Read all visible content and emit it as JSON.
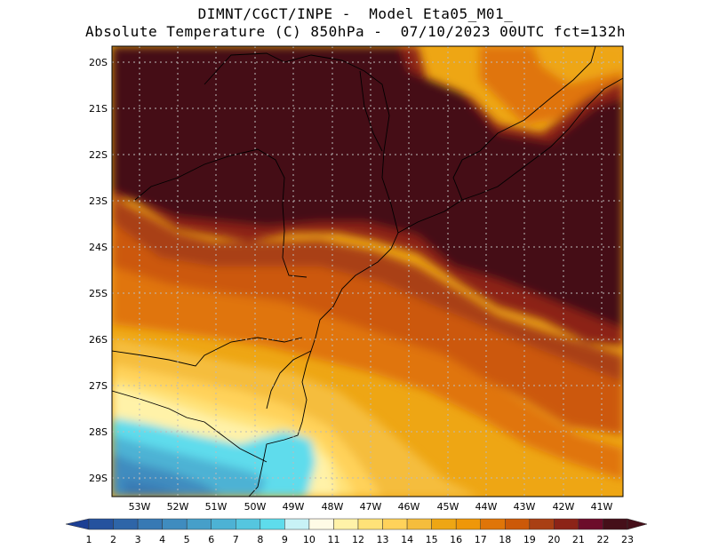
{
  "title_line1": "DIMNT/CGCT/INPE -  Model Eta05_M01_",
  "title_line2": "Absolute Temperature (C) 850hPa -  07/10/2023 00UTC fct=132h",
  "lat_labels": [
    "20S",
    "21S",
    "22S",
    "23S",
    "24S",
    "25S",
    "26S",
    "27S",
    "28S",
    "29S"
  ],
  "lon_labels": [
    "53W",
    "52W",
    "51W",
    "50W",
    "49W",
    "48W",
    "47W",
    "46W",
    "45W",
    "44W",
    "43W",
    "42W",
    "41W"
  ],
  "colorbar": {
    "labels": [
      "1",
      "2",
      "3",
      "4",
      "5",
      "6",
      "7",
      "8",
      "9",
      "10",
      "11",
      "12",
      "13",
      "14",
      "15",
      "16",
      "17",
      "18",
      "19",
      "20",
      "21",
      "22",
      "23"
    ],
    "colors": [
      "#1c3f94",
      "#25529e",
      "#2e65a8",
      "#3779b4",
      "#3f8cbf",
      "#469fc9",
      "#4db2d4",
      "#55c6df",
      "#5edcec",
      "#c8f2f6",
      "#fffbe6",
      "#fff2a8",
      "#ffe278",
      "#ffd25a",
      "#f5bd3c",
      "#eea614",
      "#ef9709",
      "#e07508",
      "#cc5908",
      "#a93f13",
      "#8c2317",
      "#6c0c2a",
      "#450f19"
    ]
  }
}
